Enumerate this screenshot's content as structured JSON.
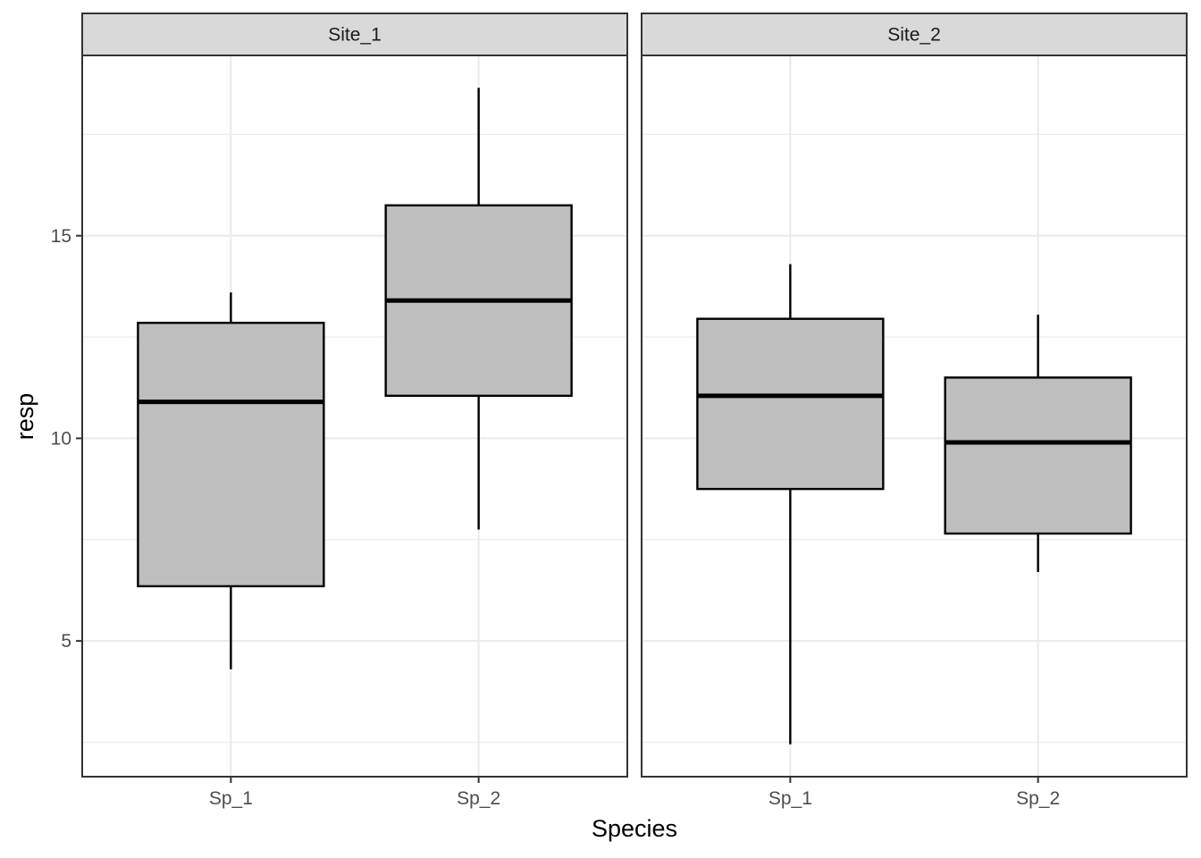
{
  "chart_data": {
    "type": "boxplot",
    "facet_variable_values": [
      "Site_1",
      "Site_2"
    ],
    "xlabel": "Species",
    "ylabel": "resp",
    "categories": [
      "Sp_1",
      "Sp_2"
    ],
    "y_ticks": [
      5,
      10,
      15
    ],
    "ylim": [
      1.65,
      19.45
    ],
    "grid": true,
    "theme": "bw",
    "box_fill": "#bebebe",
    "panels": [
      {
        "strip": "Site_1",
        "boxes": [
          {
            "category": "Sp_1",
            "lower_whisker": 4.3,
            "q1": 6.35,
            "median": 10.9,
            "q3": 12.85,
            "upper_whisker": 13.6
          },
          {
            "category": "Sp_2",
            "lower_whisker": 7.75,
            "q1": 11.05,
            "median": 13.4,
            "q3": 15.75,
            "upper_whisker": 18.65
          }
        ]
      },
      {
        "strip": "Site_2",
        "boxes": [
          {
            "category": "Sp_1",
            "lower_whisker": 2.45,
            "q1": 8.75,
            "median": 11.05,
            "q3": 12.95,
            "upper_whisker": 14.3
          },
          {
            "category": "Sp_2",
            "lower_whisker": 6.7,
            "q1": 7.65,
            "median": 9.9,
            "q3": 11.5,
            "upper_whisker": 13.05
          }
        ]
      }
    ]
  }
}
